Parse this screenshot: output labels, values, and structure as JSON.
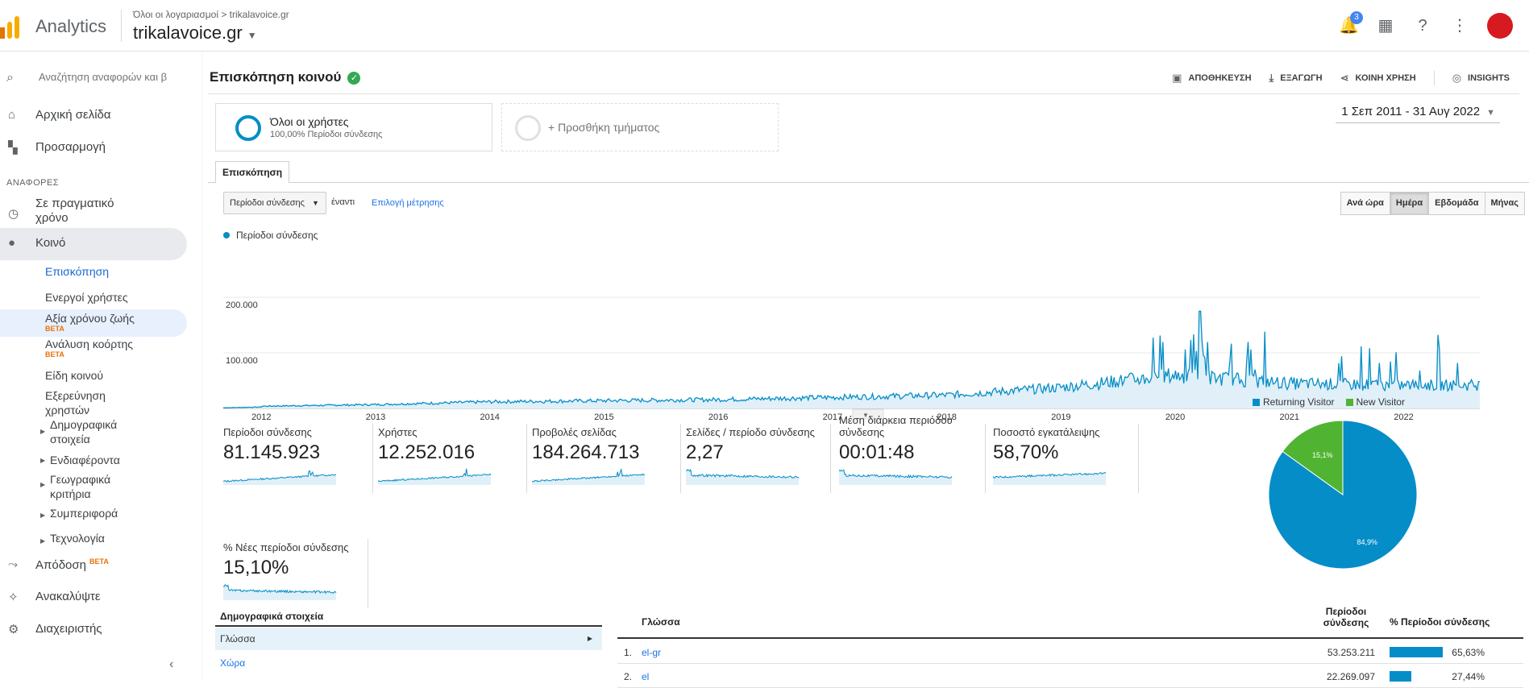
{
  "topbar": {
    "app_name": "Analytics",
    "breadcrumb": "Όλοι οι λογαριασμοί > trikalavoice.gr",
    "property": "trikalavoice.gr",
    "notifications_count": "3"
  },
  "sidebar": {
    "search_placeholder": "Αναζήτηση αναφορών και β",
    "home": "Αρχική σελίδα",
    "customization": "Προσαρμογή",
    "reports_section": "ΑΝΑΦΟΡΕΣ",
    "realtime_line1": "Σε πραγματικό",
    "realtime_line2": "χρόνο",
    "audience": "Κοινό",
    "sub": {
      "overview": "Επισκόπηση",
      "active_users": "Ενεργοί χρήστες",
      "lifetime": "Αξία χρόνου ζωής",
      "cohort": "Ανάλυση κοόρτης",
      "beta": "BETA",
      "benchmark": "Είδη κοινού",
      "explorer_line1": "Εξερεύνηση",
      "explorer_line2": "χρηστών",
      "demographics_line1": "Δημογραφικά",
      "demographics_line2": "στοιχεία",
      "interests": "Ενδιαφέροντα",
      "geo_line1": "Γεωγραφικά",
      "geo_line2": "κριτήρια",
      "behavior": "Συμπεριφορά",
      "technology": "Τεχνολογία"
    },
    "attribution": "Απόδοση",
    "attribution_beta": "BETA",
    "discover": "Ανακαλύψτε",
    "admin": "Διαχειριστής"
  },
  "header": {
    "title": "Επισκόπηση κοινού",
    "save": "ΑΠΟΘΗΚΕΥΣΗ",
    "export": "ΕΞΑΓΩΓΗ",
    "share": "ΚΟΙΝΗ ΧΡΗΣΗ",
    "insights": "INSIGHTS"
  },
  "segments": {
    "all_users": "Όλοι οι χρήστες",
    "all_users_sub": "100,00% Περίοδοι σύνδεσης",
    "add_segment": "+ Προσθήκη τμήματος"
  },
  "date_range": "1 Σεπ 2011 - 31 Αυγ 2022",
  "tab": "Επισκόπηση",
  "controls": {
    "metric": "Περίοδοι σύνδεσης",
    "vs": "έναντι",
    "choose_metric": "Επιλογή μέτρησης",
    "granularity": [
      "Ανά ώρα",
      "Ημέρα",
      "Εβδομάδα",
      "Μήνας"
    ],
    "selected_granularity": "Ημέρα"
  },
  "chart_data": [
    {
      "type": "line",
      "series": [
        {
          "name": "Περίοδοι σύνδεσης"
        }
      ],
      "ytick_labels": [
        "200.000",
        "100.000"
      ],
      "xtick_labels": [
        "2012",
        "2013",
        "2014",
        "2015",
        "2016",
        "2017",
        "2018",
        "2019",
        "2020",
        "2021",
        "2022"
      ],
      "ylim": [
        0,
        200000
      ],
      "grid": true,
      "monthly_approx": [
        {
          "year": 2012,
          "value": 4000
        },
        {
          "year": 2013,
          "value": 7000
        },
        {
          "year": 2014,
          "value": 12000
        },
        {
          "year": 2015,
          "value": 14000
        },
        {
          "year": 2016,
          "value": 16000
        },
        {
          "year": 2017,
          "value": 20000
        },
        {
          "year": 2018,
          "value": 24000
        },
        {
          "year": 2019,
          "value": 38000
        },
        {
          "year": 2020,
          "value": 60000
        },
        {
          "year": 2021,
          "value": 45000
        },
        {
          "year": 2022,
          "value": 42000
        }
      ],
      "peak": {
        "date": "2020-03",
        "value": 175000
      }
    },
    {
      "type": "pie",
      "legend": [
        "Returning Visitor",
        "New Visitor"
      ],
      "values": [
        84.9,
        15.1
      ],
      "labels": [
        "84,9%",
        "15,1%"
      ],
      "colors": [
        "#058dc7",
        "#50b432"
      ]
    }
  ],
  "kpis": [
    {
      "name": "Περίοδοι σύνδεσης",
      "value": "81.145.923",
      "spark": "growth"
    },
    {
      "name": "Χρήστες",
      "value": "12.252.016",
      "spark": "growth"
    },
    {
      "name": "Προβολές σελίδας",
      "value": "184.264.713",
      "spark": "growth"
    },
    {
      "name": "Σελίδες / περίοδο σύνδεσης",
      "value": "2,27",
      "spark": "flat"
    },
    {
      "name": "Μέση διάρκεια περιόδου σύνδεσης",
      "value": "00:01:48",
      "spark": "flat"
    },
    {
      "name": "Ποσοστό εγκατάλειψης",
      "value": "58,70%",
      "spark": "flat-rise"
    },
    {
      "name": "% Νέες περίοδοι σύνδεσης",
      "value": "15,10%",
      "spark": "flat"
    }
  ],
  "demographics": {
    "title": "Δημογραφικά στοιχεία",
    "active_row": "Γλώσσα",
    "next_row": "Χώρα"
  },
  "table": {
    "col_language": "Γλώσσα",
    "col_sessions": "Περίοδοι σύνδεσης",
    "col_pct": "% Περίοδοι σύνδεσης",
    "rows": [
      {
        "idx": "1.",
        "lang": "el-gr",
        "sessions": "53.253.211",
        "pct": "65,63%",
        "pct_value": 65.63
      },
      {
        "idx": "2.",
        "lang": "el",
        "sessions": "22.269.097",
        "pct": "27,44%",
        "pct_value": 27.44
      }
    ]
  },
  "colors": {
    "accent": "#058dc7",
    "new_visitor": "#50b432",
    "link": "#1a73e8"
  }
}
